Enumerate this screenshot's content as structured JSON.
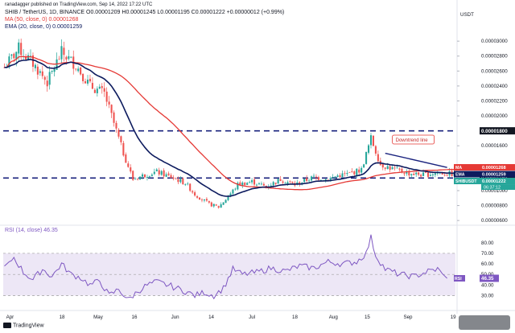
{
  "header": {
    "author": "ranadagger published on TradingView.com, Sep 14, 2022 17:22 UTC",
    "symbol_line": "SHIB / TetherUS, 1D, BINANCE  O0.00001209  H0.00001245  L0.00001195  C0.00001222  +0.00000012 (+0.99%)",
    "ma_line": "MA (50, close, 0)  0.00001268",
    "ema_line": "EMA (20, close, 0)  0.00001259",
    "rsi_line": "RSI (14, close)  46.35"
  },
  "branding": {
    "logo_text": "TradingView"
  },
  "colors": {
    "up": "#26a69a",
    "down": "#ef5350",
    "ma": "#e53935",
    "ema": "#0d1b5e",
    "rsi": "#7e57c2",
    "rsi_band": "#ede7f6",
    "dashed": "#1a237e",
    "trend": "#1a237e"
  },
  "chart_data": [
    {
      "type": "candlestick",
      "title": "SHIB / TetherUS, 1D, BINANCE",
      "x_ticks": [
        "Apr",
        "18",
        "May",
        "16",
        "Jun",
        "14",
        "Jul",
        "18",
        "Aug",
        "15",
        "Sep",
        "19"
      ],
      "y_axis_unit": "USDT",
      "y_ticks": [
        "0.00003000",
        "0.00002800",
        "0.00002600",
        "0.00002400",
        "0.00002200",
        "0.00002000",
        "0.00001600",
        "0.00001200",
        "0.00001000",
        "0.00000800",
        "0.00000600"
      ],
      "ylim": [
        5.8e-06,
        3.12e-05
      ],
      "anchors": [
        [
          0,
          2.65e-05
        ],
        [
          6,
          2.9e-05
        ],
        [
          12,
          2.7e-05
        ],
        [
          18,
          2.45e-05
        ],
        [
          24,
          2.85e-05
        ],
        [
          30,
          2.68e-05
        ],
        [
          36,
          2.4e-05
        ],
        [
          42,
          2.3e-05
        ],
        [
          46,
          1.9e-05
        ],
        [
          50,
          1.5e-05
        ],
        [
          54,
          1.15e-05
        ],
        [
          58,
          1.2e-05
        ],
        [
          64,
          1.25e-05
        ],
        [
          70,
          1.18e-05
        ],
        [
          76,
          1.1e-05
        ],
        [
          80,
          9.5e-06
        ],
        [
          86,
          8.2e-06
        ],
        [
          90,
          7.8e-06
        ],
        [
          94,
          9.2e-06
        ],
        [
          98,
          1.08e-05
        ],
        [
          104,
          1.12e-05
        ],
        [
          110,
          1.05e-05
        ],
        [
          116,
          1.15e-05
        ],
        [
          122,
          1.08e-05
        ],
        [
          130,
          1.18e-05
        ],
        [
          136,
          1.15e-05
        ],
        [
          140,
          1.2e-05
        ],
        [
          144,
          1.22e-05
        ],
        [
          150,
          1.28e-05
        ],
        [
          154,
          1.7e-05
        ],
        [
          158,
          1.35e-05
        ],
        [
          164,
          1.28e-05
        ],
        [
          170,
          1.23e-05
        ],
        [
          176,
          1.21e-05
        ],
        [
          182,
          1.24e-05
        ],
        [
          188,
          1.22e-05
        ]
      ],
      "horizontal_levels": [
        {
          "value": 1.8e-05,
          "label": "0.00001800"
        },
        {
          "value": 1.169e-05,
          "label": "0.00001169"
        }
      ],
      "trendline": {
        "label": "Downtrend line",
        "from": [
          160,
          1.5e-05
        ],
        "to": [
          186,
          1.31e-05
        ]
      },
      "price_tags": [
        {
          "tag": "MA",
          "value": "0.00001268"
        },
        {
          "tag": "EMA",
          "value": "0.00001259"
        },
        {
          "tag": "SHIBUSDT",
          "value": "0.00001222",
          "sub": "06:37:12"
        }
      ],
      "series": [
        {
          "name": "MA (50, close, 0)",
          "indicator": "sma",
          "period": 50
        },
        {
          "name": "EMA (20, close, 0)",
          "indicator": "ema",
          "period": 20
        }
      ]
    },
    {
      "type": "line",
      "title": "RSI (14, close)",
      "y_ticks": [
        "80.00",
        "70.00",
        "60.00",
        "50.00",
        "40.00",
        "30.00"
      ],
      "ylim": [
        22,
        92
      ],
      "band": [
        30,
        70
      ],
      "last_value": "46.35",
      "anchors": [
        [
          0,
          58
        ],
        [
          4,
          66
        ],
        [
          8,
          52
        ],
        [
          12,
          45
        ],
        [
          16,
          55
        ],
        [
          20,
          48
        ],
        [
          24,
          60
        ],
        [
          28,
          50
        ],
        [
          32,
          47
        ],
        [
          36,
          40
        ],
        [
          40,
          44
        ],
        [
          44,
          30
        ],
        [
          48,
          36
        ],
        [
          52,
          26
        ],
        [
          56,
          34
        ],
        [
          60,
          40
        ],
        [
          64,
          43
        ],
        [
          70,
          39
        ],
        [
          76,
          34
        ],
        [
          80,
          30
        ],
        [
          84,
          33
        ],
        [
          88,
          30
        ],
        [
          92,
          37
        ],
        [
          96,
          55
        ],
        [
          100,
          50
        ],
        [
          106,
          52
        ],
        [
          112,
          56
        ],
        [
          118,
          53
        ],
        [
          124,
          58
        ],
        [
          130,
          56
        ],
        [
          136,
          62
        ],
        [
          142,
          60
        ],
        [
          148,
          62
        ],
        [
          152,
          70
        ],
        [
          154,
          85
        ],
        [
          156,
          68
        ],
        [
          160,
          55
        ],
        [
          166,
          50
        ],
        [
          172,
          48
        ],
        [
          178,
          53
        ],
        [
          182,
          55
        ],
        [
          186,
          46.35
        ]
      ]
    }
  ]
}
